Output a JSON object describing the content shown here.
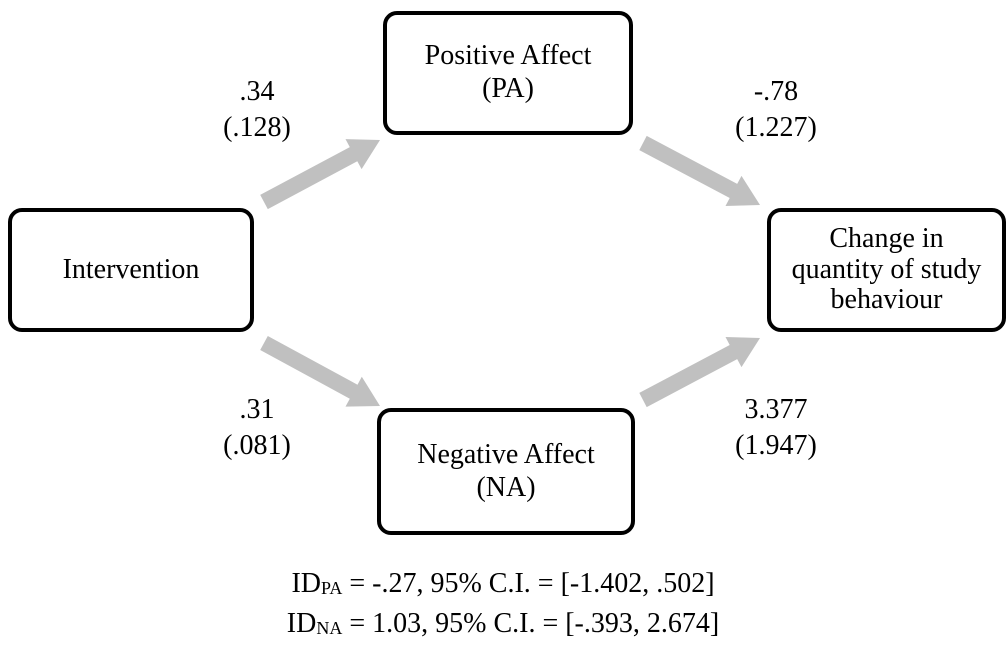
{
  "colors": {
    "arrow": "#c0c0c0",
    "box_border": "#000000",
    "text": "#000000"
  },
  "nodes": {
    "intervention": {
      "lines": [
        "Intervention"
      ]
    },
    "positive_affect": {
      "lines": [
        "Positive Affect",
        "(PA)"
      ]
    },
    "negative_affect": {
      "lines": [
        "Negative Affect",
        "(NA)"
      ]
    },
    "change": {
      "lines": [
        "Change in",
        "quantity of study",
        "behaviour"
      ]
    }
  },
  "paths": {
    "intervention_to_pa": {
      "coefficient": ".34",
      "se": "(.128)"
    },
    "pa_to_change": {
      "coefficient": "-.78",
      "se": "(1.227)"
    },
    "intervention_to_na": {
      "coefficient": ".31",
      "se": "(.081)"
    },
    "na_to_change": {
      "coefficient": "3.377",
      "se": "(1.947)"
    }
  },
  "indirect_effects": [
    {
      "label": "ID",
      "subscript": "PA",
      "text": " = -.27, 95% C.I. = [-1.402, .502]"
    },
    {
      "label": "ID",
      "subscript": "NA",
      "text": " = 1.03, 95% C.I. = [-.393, 2.674]"
    }
  ]
}
